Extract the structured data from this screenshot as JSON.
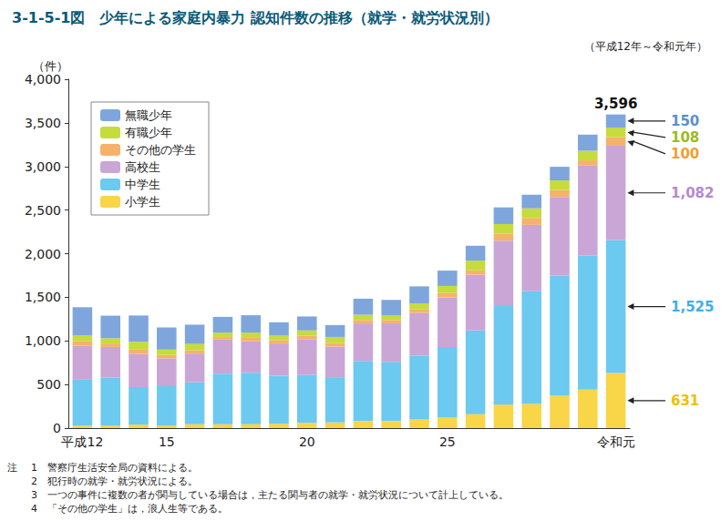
{
  "chart_data": {
    "type": "bar",
    "stacked": true,
    "grid": false,
    "legend": "top-left",
    "title": "3-1-5-1図　少年による家庭内暴力 認知件数の推移（就学・就労状況別）",
    "subtitle": "（平成12年～令和元年）",
    "y_label": "（件）",
    "categories": [
      "平成12",
      null,
      null,
      "15",
      null,
      null,
      null,
      null,
      "20",
      null,
      null,
      null,
      null,
      "25",
      null,
      null,
      null,
      null,
      null,
      "令和元"
    ],
    "ylim": [
      0,
      4000
    ],
    "yticks": [
      0,
      500,
      {
        "value": 1000,
        "label": "1,000"
      },
      {
        "value": 1500,
        "label": "1,500"
      },
      {
        "value": 2000,
        "label": "2,000"
      },
      {
        "value": 2500,
        "label": "2,500"
      },
      {
        "value": 3000,
        "label": "3,000"
      },
      {
        "value": 3500,
        "label": "3,500"
      },
      {
        "value": 4000,
        "label": "4,000"
      }
    ],
    "series": [
      {
        "name": "小学生",
        "color": "#f9d548",
        "label_color": "#efbf00",
        "last_label": "631",
        "values": [
          25,
          30,
          40,
          30,
          45,
          45,
          45,
          50,
          60,
          65,
          80,
          80,
          100,
          120,
          160,
          270,
          280,
          370,
          440,
          631
        ]
      },
      {
        "name": "中学生",
        "color": "#6cc9ef",
        "label_color": "#3fb0e4",
        "last_label": "1,525",
        "values": [
          530,
          550,
          430,
          450,
          480,
          580,
          590,
          550,
          550,
          510,
          690,
          680,
          730,
          810,
          960,
          1130,
          1290,
          1380,
          1540,
          1525
        ]
      },
      {
        "name": "高校生",
        "color": "#c9a6d6",
        "label_color": "#b58ad0",
        "last_label": "1,082",
        "values": [
          390,
          350,
          380,
          320,
          330,
          390,
          360,
          370,
          410,
          360,
          430,
          440,
          490,
          570,
          640,
          750,
          760,
          900,
          1030,
          1082
        ]
      },
      {
        "name": "その他の学生",
        "color": "#f6b26b",
        "label_color": "#f0a030",
        "last_label": "100",
        "values": [
          50,
          40,
          50,
          40,
          40,
          30,
          40,
          40,
          40,
          40,
          40,
          40,
          40,
          50,
          50,
          80,
          80,
          80,
          60,
          100
        ]
      },
      {
        "name": "有職少年",
        "color": "#c5dc3c",
        "label_color": "#9bbb1f",
        "last_label": "108",
        "values": [
          70,
          60,
          90,
          60,
          70,
          50,
          60,
          50,
          60,
          70,
          60,
          50,
          70,
          80,
          110,
          110,
          110,
          110,
          110,
          108
        ]
      },
      {
        "name": "無職少年",
        "color": "#7ea6dc",
        "label_color": "#5b8fd0",
        "last_label": "150",
        "values": [
          321,
          259,
          301,
          254,
          221,
          180,
          199,
          153,
          160,
          136,
          184,
          180,
          195,
          176,
          171,
          191,
          156,
          156,
          185,
          150
        ]
      }
    ],
    "annotations": [
      {
        "text": "3,596",
        "category_index": 19,
        "value": 3596
      }
    ],
    "notes_label": "注",
    "notes": [
      "1　警察庁生活安全局の資料による。",
      "2　犯行時の就学・就労状況による。",
      "3　一つの事件に複数の者が関与している場合は，主たる関与者の就学・就労状況について計上している。",
      "4　「その他の学生」は，浪人生等である。"
    ]
  }
}
